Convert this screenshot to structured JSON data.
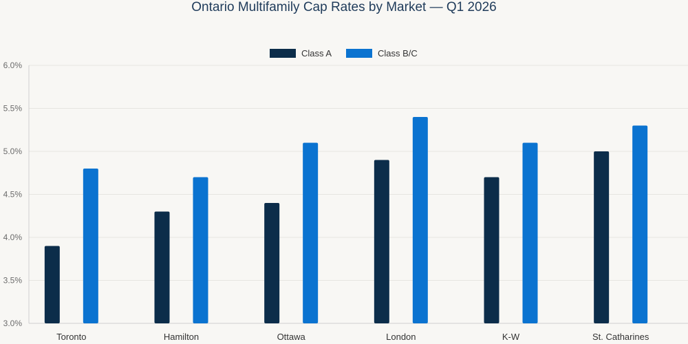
{
  "chart_data": {
    "type": "bar",
    "title": "Ontario Multifamily Cap Rates by Market — Q1 2026",
    "categories": [
      "Toronto",
      "Hamilton",
      "Ottawa",
      "London",
      "K-W",
      "St. Catharines"
    ],
    "series": [
      {
        "name": "Class A",
        "values": [
          3.9,
          4.3,
          4.4,
          4.9,
          4.7,
          5.0
        ],
        "color": "#0c2d4a"
      },
      {
        "name": "Class B/C",
        "values": [
          4.8,
          4.7,
          5.1,
          5.4,
          5.1,
          5.3
        ],
        "color": "#0b73d0"
      }
    ],
    "ylim": [
      3.0,
      6.0
    ],
    "yticks": [
      "3.0%",
      "3.5%",
      "4.0%",
      "4.5%",
      "5.0%",
      "5.5%",
      "6.0%"
    ],
    "ytick_values": [
      3.0,
      3.5,
      4.0,
      4.5,
      5.0,
      5.5,
      6.0
    ],
    "xlabel": "",
    "ylabel": "",
    "grid": true,
    "legend_position": "top-center"
  }
}
